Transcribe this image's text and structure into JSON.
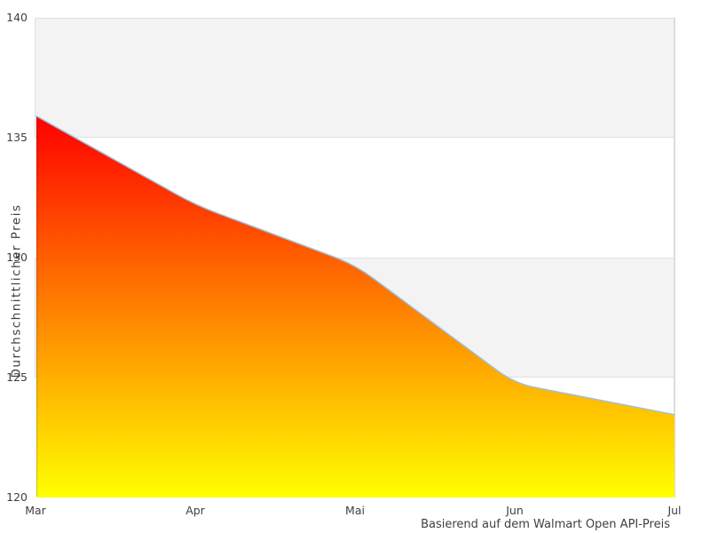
{
  "chart": {
    "y_axis_label": "Durchschnittlicher Preis",
    "caption": "Basierend auf dem Walmart Open API-Preis",
    "colors": {
      "gradient_top": "#ff0000",
      "gradient_bottom": "#ffff00",
      "line": "#a0bfd8",
      "band_fill": "#f3f3f3",
      "band_border": "#e0e0e0",
      "right_border": "#dcdcdc",
      "text": "#3f3f3f",
      "background": "#ffffff"
    }
  },
  "chart_data": {
    "type": "area",
    "x": [
      "Mar",
      "Apr",
      "Mai",
      "Jun",
      "Jul"
    ],
    "values": [
      135.9,
      132.2,
      129.7,
      124.75,
      123.45
    ],
    "series_name": "Durchschnittlicher Preis",
    "title": "",
    "xlabel": "",
    "ylabel": "Durchschnittlicher Preis",
    "ylim": [
      120,
      140
    ],
    "yticks": [
      120,
      125,
      130,
      135,
      140
    ],
    "legend": "none",
    "grid": "alternating horizontal bands, gray between 135-140 and 125-130, white elsewhere",
    "fill": "vertical gradient red (top) to yellow (bottom)",
    "annotations": [
      "Basierend auf dem Walmart Open API-Preis"
    ]
  }
}
